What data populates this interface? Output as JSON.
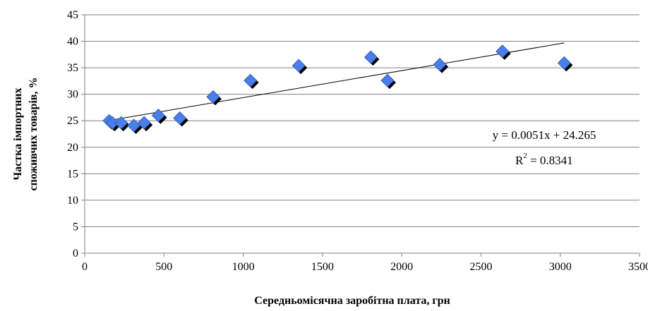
{
  "chart_data": {
    "type": "scatter",
    "xlabel": "Середньомісячна заробітна плата, грн",
    "ylabel_lines": [
      "Частка імпортних",
      "споживчих товарів, %"
    ],
    "xlim": [
      0,
      3500
    ],
    "ylim": [
      0,
      45
    ],
    "x_ticks": [
      0,
      500,
      1000,
      1500,
      2000,
      2500,
      3000,
      3500
    ],
    "y_ticks": [
      0,
      5,
      10,
      15,
      20,
      25,
      30,
      35,
      40,
      45
    ],
    "grid": "horizontal",
    "legend": "none",
    "marker": "diamond",
    "colors": {
      "marker": "#4a7ee8",
      "marker_shadow": "#000000",
      "grid": "#808080",
      "trendline": "#000000"
    },
    "series": [
      {
        "points": [
          {
            "x": 155,
            "y": 25.0
          },
          {
            "x": 175,
            "y": 24.6
          },
          {
            "x": 230,
            "y": 24.6
          },
          {
            "x": 310,
            "y": 24.1
          },
          {
            "x": 375,
            "y": 24.6
          },
          {
            "x": 465,
            "y": 26.0
          },
          {
            "x": 600,
            "y": 25.5
          },
          {
            "x": 810,
            "y": 29.5
          },
          {
            "x": 1045,
            "y": 32.6
          },
          {
            "x": 1350,
            "y": 35.4
          },
          {
            "x": 1805,
            "y": 37.0
          },
          {
            "x": 1910,
            "y": 32.6
          },
          {
            "x": 2240,
            "y": 35.6
          },
          {
            "x": 2635,
            "y": 38.1
          },
          {
            "x": 3025,
            "y": 35.9
          }
        ]
      }
    ],
    "trendline": {
      "type": "linear",
      "slope": 0.0051,
      "intercept": 24.265,
      "x_range": [
        155,
        3025
      ],
      "equation_label": "y = 0.0051x + 24.265",
      "r2_prefix": "R",
      "r2_sup": "2",
      "r2_value": " = 0.8341"
    }
  }
}
